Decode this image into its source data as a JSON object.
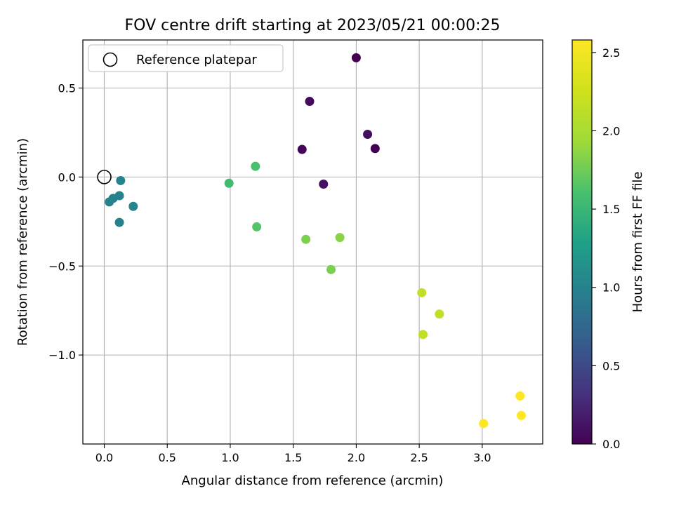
{
  "chart_data": {
    "type": "scatter",
    "title": "FOV centre drift starting at 2023/05/21 00:00:25",
    "xlabel": "Angular distance from reference (arcmin)",
    "ylabel": "Rotation from reference (arcmin)",
    "xlim": [
      -0.17,
      3.48
    ],
    "ylim": [
      -1.5,
      0.77
    ],
    "xticks": [
      0.0,
      0.5,
      1.0,
      1.5,
      2.0,
      2.5,
      3.0
    ],
    "xtick_labels": [
      "0.0",
      "0.5",
      "1.0",
      "1.5",
      "2.0",
      "2.5",
      "3.0"
    ],
    "yticks": [
      0.5,
      0.0,
      -0.5,
      -1.0
    ],
    "ytick_labels": [
      "0.5",
      "0.0",
      "−0.5",
      "−1.0"
    ],
    "grid": true,
    "legend": {
      "position": "top-left",
      "entries": [
        "Reference platepar"
      ]
    },
    "reference": {
      "name": "Reference platepar",
      "x": 0.0,
      "y": 0.0
    },
    "colormap": "viridis",
    "colorbar": {
      "label": "Hours from first FF file",
      "range": [
        0.0,
        2.58
      ],
      "ticks": [
        0.0,
        0.5,
        1.0,
        1.5,
        2.0,
        2.5
      ],
      "tick_labels": [
        "0.0",
        "0.5",
        "1.0",
        "1.5",
        "2.0",
        "2.5"
      ]
    },
    "points": [
      {
        "x": 2.0,
        "y": 0.67,
        "hours": 0.0
      },
      {
        "x": 1.63,
        "y": 0.425,
        "hours": 0.05
      },
      {
        "x": 2.09,
        "y": 0.24,
        "hours": 0.08
      },
      {
        "x": 2.15,
        "y": 0.16,
        "hours": 0.0
      },
      {
        "x": 1.57,
        "y": 0.155,
        "hours": 0.04
      },
      {
        "x": 1.74,
        "y": -0.04,
        "hours": 0.1
      },
      {
        "x": 0.13,
        "y": -0.02,
        "hours": 1.0
      },
      {
        "x": 0.12,
        "y": -0.105,
        "hours": 1.0
      },
      {
        "x": 0.07,
        "y": -0.12,
        "hours": 1.0
      },
      {
        "x": 0.04,
        "y": -0.14,
        "hours": 1.0
      },
      {
        "x": 0.23,
        "y": -0.165,
        "hours": 1.0
      },
      {
        "x": 0.12,
        "y": -0.255,
        "hours": 1.0
      },
      {
        "x": 0.99,
        "y": -0.035,
        "hours": 1.55
      },
      {
        "x": 1.2,
        "y": 0.06,
        "hours": 1.6
      },
      {
        "x": 1.21,
        "y": -0.28,
        "hours": 1.65
      },
      {
        "x": 1.6,
        "y": -0.35,
        "hours": 1.8
      },
      {
        "x": 1.87,
        "y": -0.34,
        "hours": 1.85
      },
      {
        "x": 1.8,
        "y": -0.52,
        "hours": 1.8
      },
      {
        "x": 2.52,
        "y": -0.65,
        "hours": 2.15
      },
      {
        "x": 2.66,
        "y": -0.77,
        "hours": 2.15
      },
      {
        "x": 2.53,
        "y": -0.885,
        "hours": 2.15
      },
      {
        "x": 3.3,
        "y": -1.23,
        "hours": 2.58
      },
      {
        "x": 3.31,
        "y": -1.34,
        "hours": 2.58
      },
      {
        "x": 3.01,
        "y": -1.385,
        "hours": 2.58
      }
    ]
  }
}
